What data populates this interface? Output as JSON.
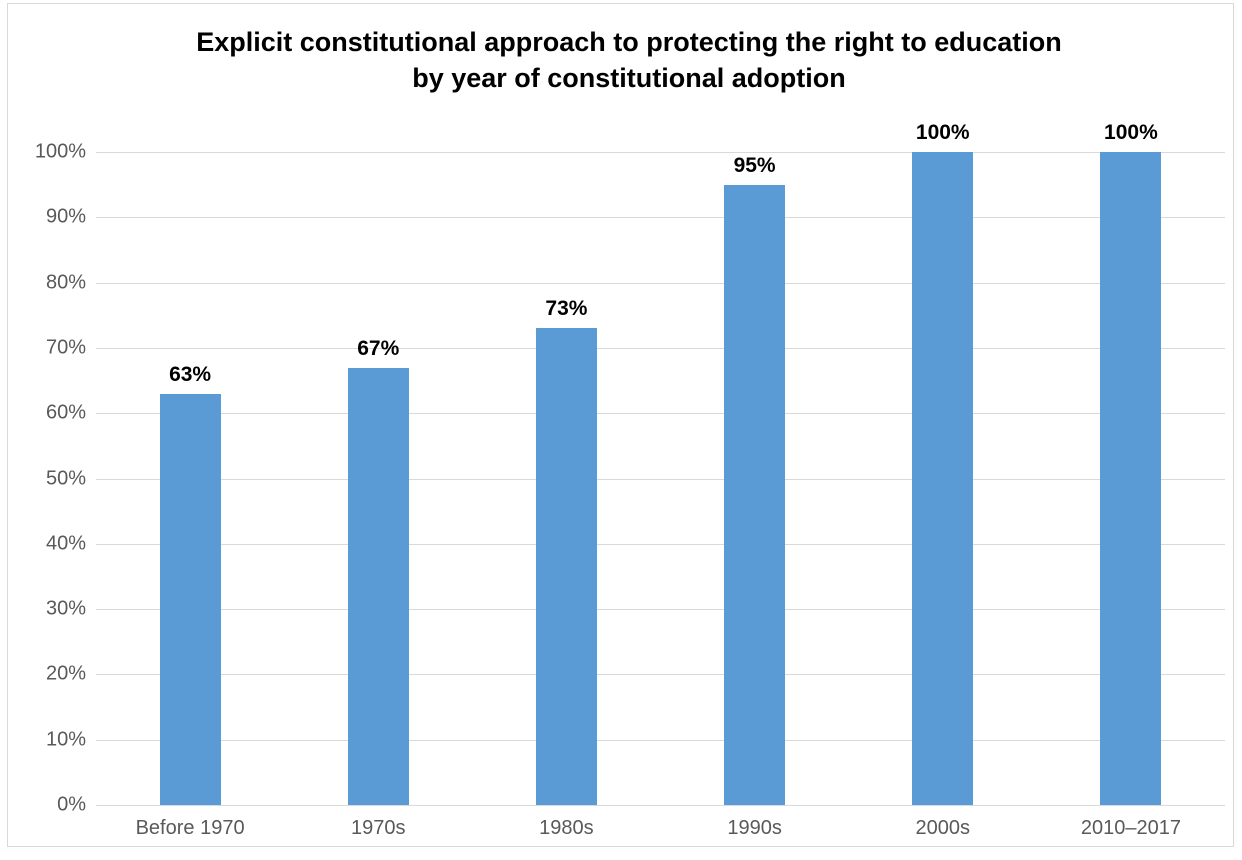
{
  "chart_data": {
    "type": "bar",
    "title": "Explicit constitutional approach to protecting the right to education by year of constitutional adoption",
    "categories": [
      "Before 1970",
      "1970s",
      "1980s",
      "1990s",
      "2000s",
      "2010–2017"
    ],
    "values": [
      63,
      67,
      73,
      95,
      100,
      100
    ],
    "value_labels": [
      "63%",
      "67%",
      "73%",
      "95%",
      "100%",
      "100%"
    ],
    "y_ticks": [
      "0%",
      "10%",
      "20%",
      "30%",
      "40%",
      "50%",
      "60%",
      "70%",
      "80%",
      "90%",
      "100%"
    ],
    "y_tick_values": [
      0,
      10,
      20,
      30,
      40,
      50,
      60,
      70,
      80,
      90,
      100
    ],
    "ylim": [
      0,
      100
    ],
    "xlabel": "",
    "ylabel": "",
    "grid": true,
    "legend_position": "none",
    "colors": {
      "bar": "#5b9bd5",
      "axis_text": "#595959",
      "gridline": "#d9d9d9",
      "title_text": "#000000",
      "value_label_text": "#000000",
      "frame_border": "#d9d9d9",
      "background": "#ffffff"
    }
  }
}
